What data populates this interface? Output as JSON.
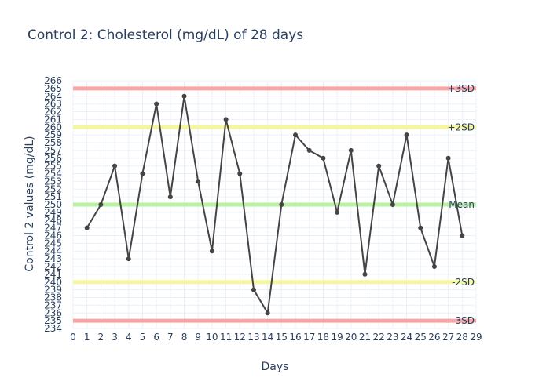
{
  "chart_data": {
    "type": "line",
    "title": "Control 2: Cholesterol (mg/dL) of 28 days",
    "xlabel": "Days",
    "ylabel": "Control 2 values (mg/dL)",
    "xlim": [
      0,
      29
    ],
    "ylim": [
      234,
      266
    ],
    "grid": true,
    "x": [
      1,
      2,
      3,
      4,
      5,
      6,
      7,
      8,
      9,
      10,
      11,
      12,
      13,
      14,
      15,
      16,
      17,
      18,
      19,
      20,
      21,
      22,
      23,
      24,
      25,
      26,
      27,
      28
    ],
    "series": [
      {
        "name": "",
        "color": "#444444",
        "values": [
          247,
          250,
          255,
          243,
          254,
          263,
          251,
          264,
          253,
          244,
          261,
          254,
          239,
          236,
          250,
          259,
          257,
          256,
          249,
          257,
          241,
          255,
          250,
          259,
          247,
          242,
          256,
          246
        ]
      }
    ],
    "reference_lines": [
      {
        "label": "+3SD",
        "value": 265,
        "color": "#f7a5a5"
      },
      {
        "label": "+2SD",
        "value": 260,
        "color": "#f4f7a0"
      },
      {
        "label": "Mean",
        "value": 250,
        "color": "#b9f0a2"
      },
      {
        "label": "-2SD",
        "value": 240,
        "color": "#f4f7a0"
      },
      {
        "label": "-3SD",
        "value": 235,
        "color": "#f7a5a5"
      }
    ]
  }
}
